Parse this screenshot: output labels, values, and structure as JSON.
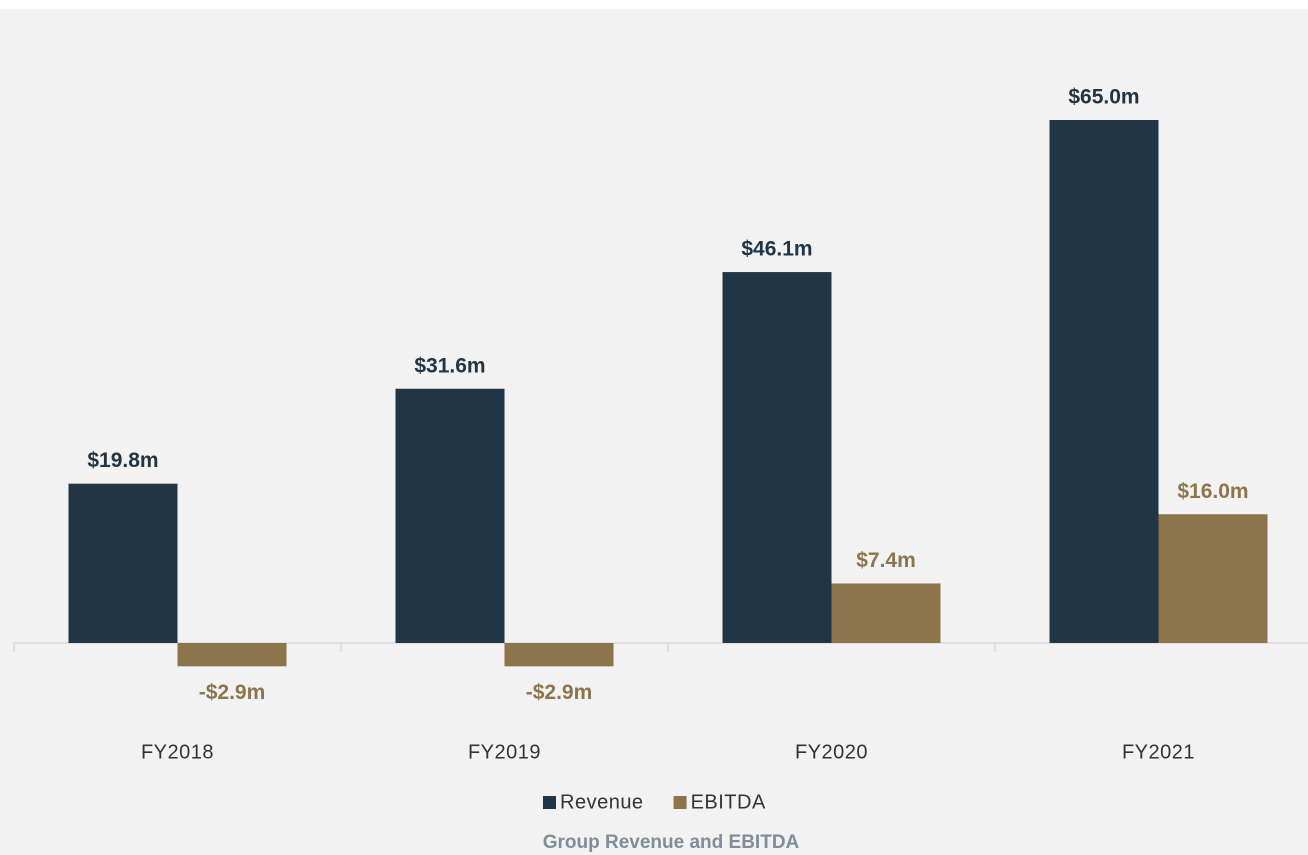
{
  "chart_data": {
    "type": "bar",
    "title": "Group Revenue and EBITDA",
    "categories": [
      "FY2018",
      "FY2019",
      "FY2020",
      "FY2021"
    ],
    "series": [
      {
        "name": "Revenue",
        "color": "#203545",
        "values": [
          19.8,
          31.6,
          46.1,
          65.0
        ],
        "value_labels": [
          "$19.8m",
          "$31.6m",
          "$46.1m",
          "$65.0m"
        ]
      },
      {
        "name": "EBITDA",
        "color": "#8c744b",
        "values": [
          -2.9,
          -2.9,
          7.4,
          16.0
        ],
        "value_labels": [
          "-$2.9m",
          "-$2.9m",
          "$7.4m",
          "$16.0m"
        ]
      }
    ],
    "legend": "bottom"
  }
}
